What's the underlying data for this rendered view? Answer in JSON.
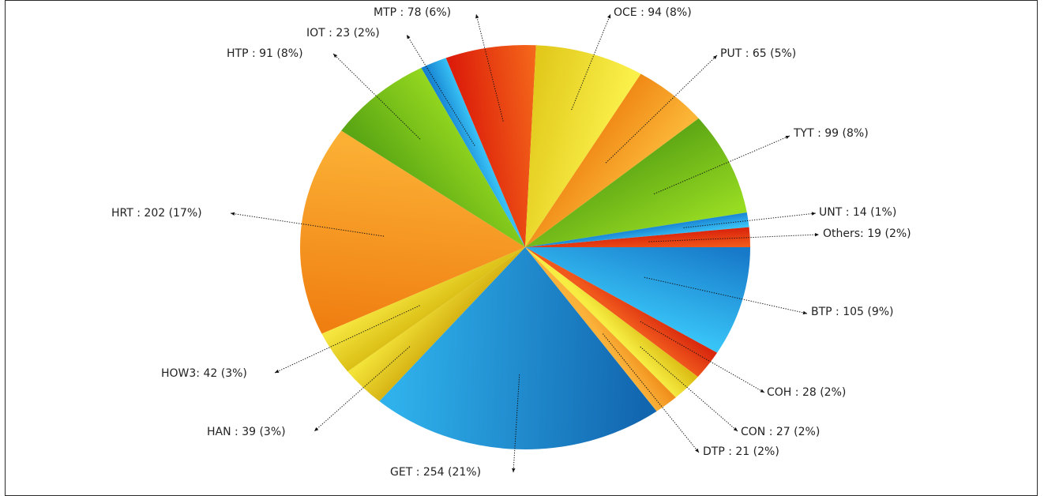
{
  "chart_data": {
    "type": "pie",
    "title": "",
    "slices": [
      {
        "label": "BTP",
        "value": 105,
        "percent": "9%",
        "display": "BTP : 105 (9%)",
        "colors": [
          "#1779c9",
          "#38c4f7"
        ]
      },
      {
        "label": "COH",
        "value": 28,
        "percent": "2%",
        "display": "COH : 28 (2%)",
        "colors": [
          "#d8280e",
          "#f0581c"
        ]
      },
      {
        "label": "CON",
        "value": 27,
        "percent": "2%",
        "display": "CON : 27 (2%)",
        "colors": [
          "#dcbe16",
          "#f6ec42"
        ]
      },
      {
        "label": "DTP",
        "value": 21,
        "percent": "2%",
        "display": "DTP : 21 (2%)",
        "colors": [
          "#f0901c",
          "#fbb23a"
        ]
      },
      {
        "label": "GET",
        "value": 254,
        "percent": "21%",
        "display": "GET : 254 (21%)",
        "colors": [
          "#1266b0",
          "#2fb1ec"
        ]
      },
      {
        "label": "HAN",
        "value": 39,
        "percent": "3%",
        "display": "HAN : 39 (3%)",
        "colors": [
          "#d6b415",
          "#f3e338"
        ]
      },
      {
        "label": "HOW3",
        "value": 42,
        "percent": "3%",
        "display": "HOW3: 42 (3%)",
        "colors": [
          "#dbbf16",
          "#f5e63f"
        ]
      },
      {
        "label": "HRT",
        "value": 202,
        "percent": "17%",
        "display": "HRT : 202 (17%)",
        "colors": [
          "#f07f12",
          "#fbb034"
        ]
      },
      {
        "label": "HTP",
        "value": 91,
        "percent": "8%",
        "display": "HTP : 91 (8%)",
        "colors": [
          "#5aa614",
          "#93d61f"
        ]
      },
      {
        "label": "IOT",
        "value": 23,
        "percent": "2%",
        "display": "IOT : 23 (2%)",
        "colors": [
          "#1580d0",
          "#38c0f4"
        ]
      },
      {
        "label": "MTP",
        "value": 78,
        "percent": "6%",
        "display": "MTP : 78 (6%)",
        "colors": [
          "#dc1d0a",
          "#f4661a"
        ]
      },
      {
        "label": "OCE",
        "value": 94,
        "percent": "8%",
        "display": "OCE : 94 (8%)",
        "colors": [
          "#e1c81a",
          "#faf04a"
        ]
      },
      {
        "label": "PUT",
        "value": 65,
        "percent": "5%",
        "display": "PUT : 65 (5%)",
        "colors": [
          "#f08a16",
          "#fbb638"
        ]
      },
      {
        "label": "TYT",
        "value": 99,
        "percent": "8%",
        "display": "TYT : 99 (8%)",
        "colors": [
          "#5fa815",
          "#98dc22"
        ]
      },
      {
        "label": "UNT",
        "value": 14,
        "percent": "1%",
        "display": "UNT : 14 (1%)",
        "colors": [
          "#1a86d4",
          "#3cc4f6"
        ]
      },
      {
        "label": "Others",
        "value": 19,
        "percent": "2%",
        "display": "Others: 19 (2%)",
        "colors": [
          "#da240c",
          "#f25a1a"
        ]
      }
    ],
    "start_angle_deg": 0,
    "direction": "clockwise",
    "legend": "none",
    "labels": "outside-with-leader-lines"
  }
}
